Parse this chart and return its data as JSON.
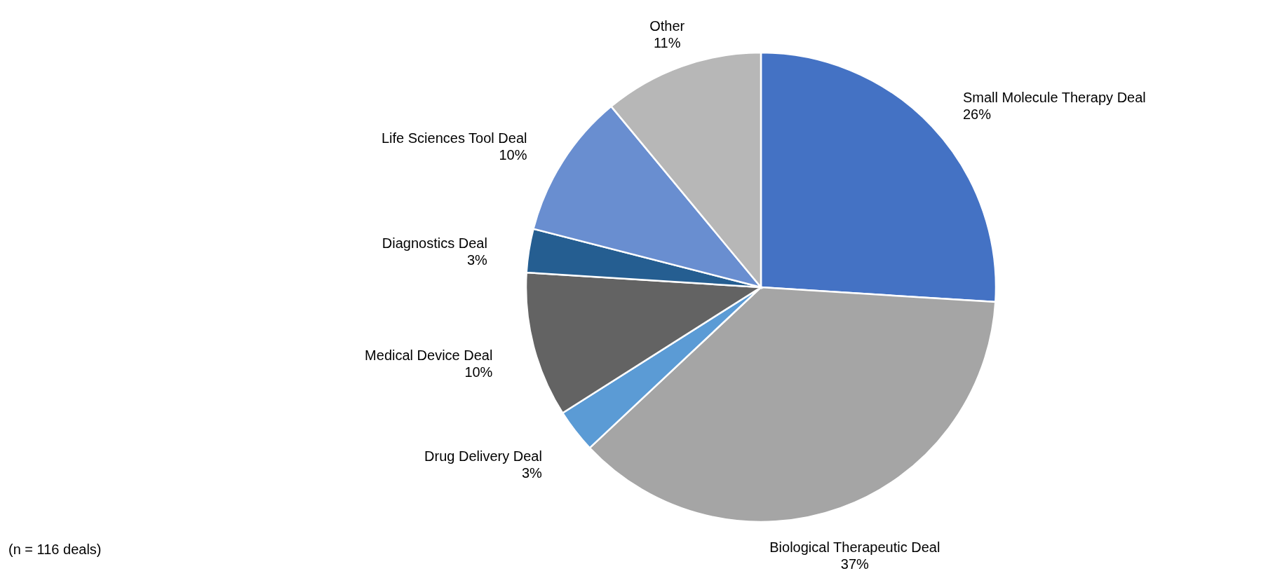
{
  "chart_data": {
    "type": "pie",
    "categories": [
      "Small Molecule Therapy Deal",
      "Biological Therapeutic Deal",
      "Drug Delivery Deal",
      "Medical Device Deal",
      "Diagnostics Deal",
      "Life Sciences Tool Deal",
      "Other"
    ],
    "values": [
      26,
      37,
      3,
      10,
      3,
      10,
      11
    ],
    "value_labels": [
      "26%",
      "37%",
      "3%",
      "10%",
      "3%",
      "10%",
      "11%"
    ],
    "colors": [
      "#4472c4",
      "#a5a5a5",
      "#5b9bd5",
      "#636363",
      "#255e91",
      "#698ed0",
      "#b7b7b7"
    ],
    "annotations": [
      "(n = 116 deals)"
    ]
  }
}
